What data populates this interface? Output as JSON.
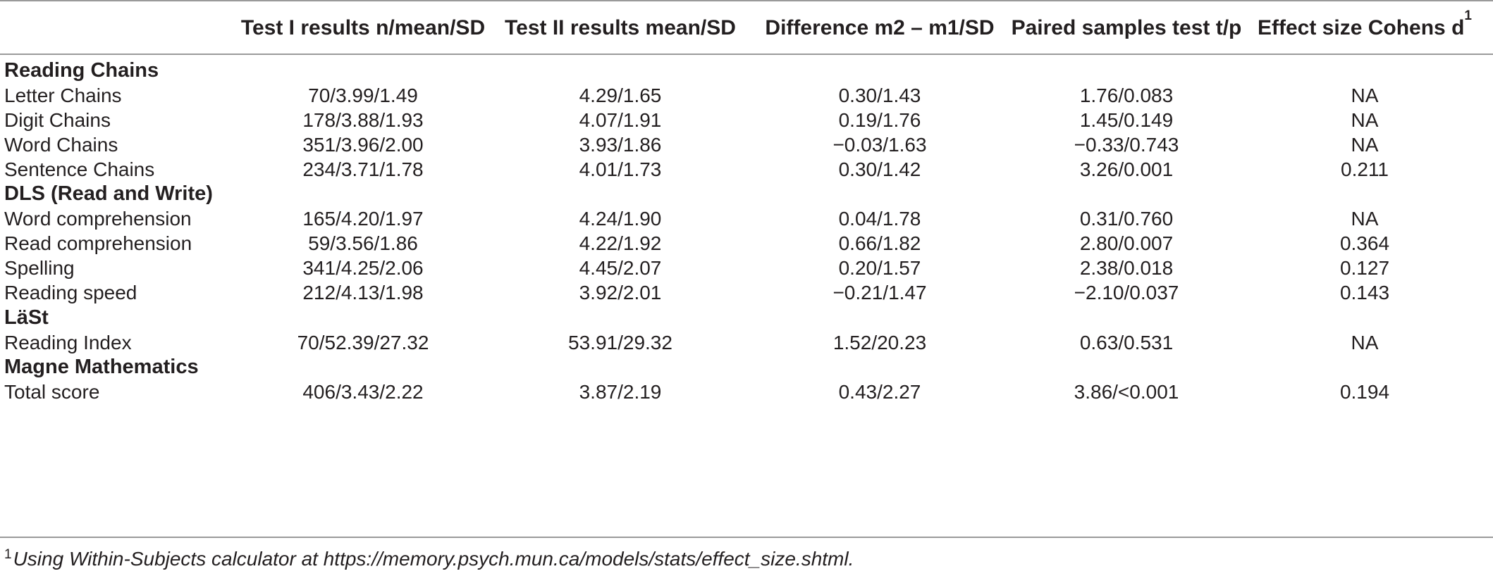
{
  "table": {
    "headers": [
      "",
      "Test I results n/mean/SD",
      "Test II results mean/SD",
      "Difference m2 – m1/SD",
      "Paired samples test t/p",
      "Effect size Cohens d"
    ],
    "effect_size_sup": "1",
    "sections": [
      {
        "title": "Reading Chains",
        "rows": [
          [
            "Letter Chains",
            "70/3.99/1.49",
            "4.29/1.65",
            "0.30/1.43",
            "1.76/0.083",
            "NA"
          ],
          [
            "Digit Chains",
            "178/3.88/1.93",
            "4.07/1.91",
            "0.19/1.76",
            "1.45/0.149",
            "NA"
          ],
          [
            "Word Chains",
            "351/3.96/2.00",
            "3.93/1.86",
            "−0.03/1.63",
            "−0.33/0.743",
            "NA"
          ],
          [
            "Sentence Chains",
            "234/3.71/1.78",
            "4.01/1.73",
            "0.30/1.42",
            "3.26/0.001",
            "0.211"
          ]
        ]
      },
      {
        "title": "DLS (Read and Write)",
        "rows": [
          [
            "Word comprehension",
            "165/4.20/1.97",
            "4.24/1.90",
            "0.04/1.78",
            "0.31/0.760",
            "NA"
          ],
          [
            "Read comprehension",
            "59/3.56/1.86",
            "4.22/1.92",
            "0.66/1.82",
            "2.80/0.007",
            "0.364"
          ],
          [
            "Spelling",
            "341/4.25/2.06",
            "4.45/2.07",
            "0.20/1.57",
            "2.38/0.018",
            "0.127"
          ],
          [
            "Reading speed",
            "212/4.13/1.98",
            "3.92/2.01",
            "−0.21/1.47",
            "−2.10/0.037",
            "0.143"
          ]
        ]
      },
      {
        "title": "LäSt",
        "rows": [
          [
            "Reading Index",
            "70/52.39/27.32",
            "53.91/29.32",
            "1.52/20.23",
            "0.63/0.531",
            "NA"
          ]
        ]
      },
      {
        "title": "Magne Mathematics",
        "rows": [
          [
            "Total score",
            "406/3.43/2.22",
            "3.87/2.19",
            "0.43/2.27",
            "3.86/<0.001",
            "0.194"
          ]
        ]
      }
    ]
  },
  "footnote": {
    "marker": "1",
    "text": "Using Within-Subjects calculator at https://memory.psych.mun.ca/models/stats/effect_size.shtml."
  }
}
